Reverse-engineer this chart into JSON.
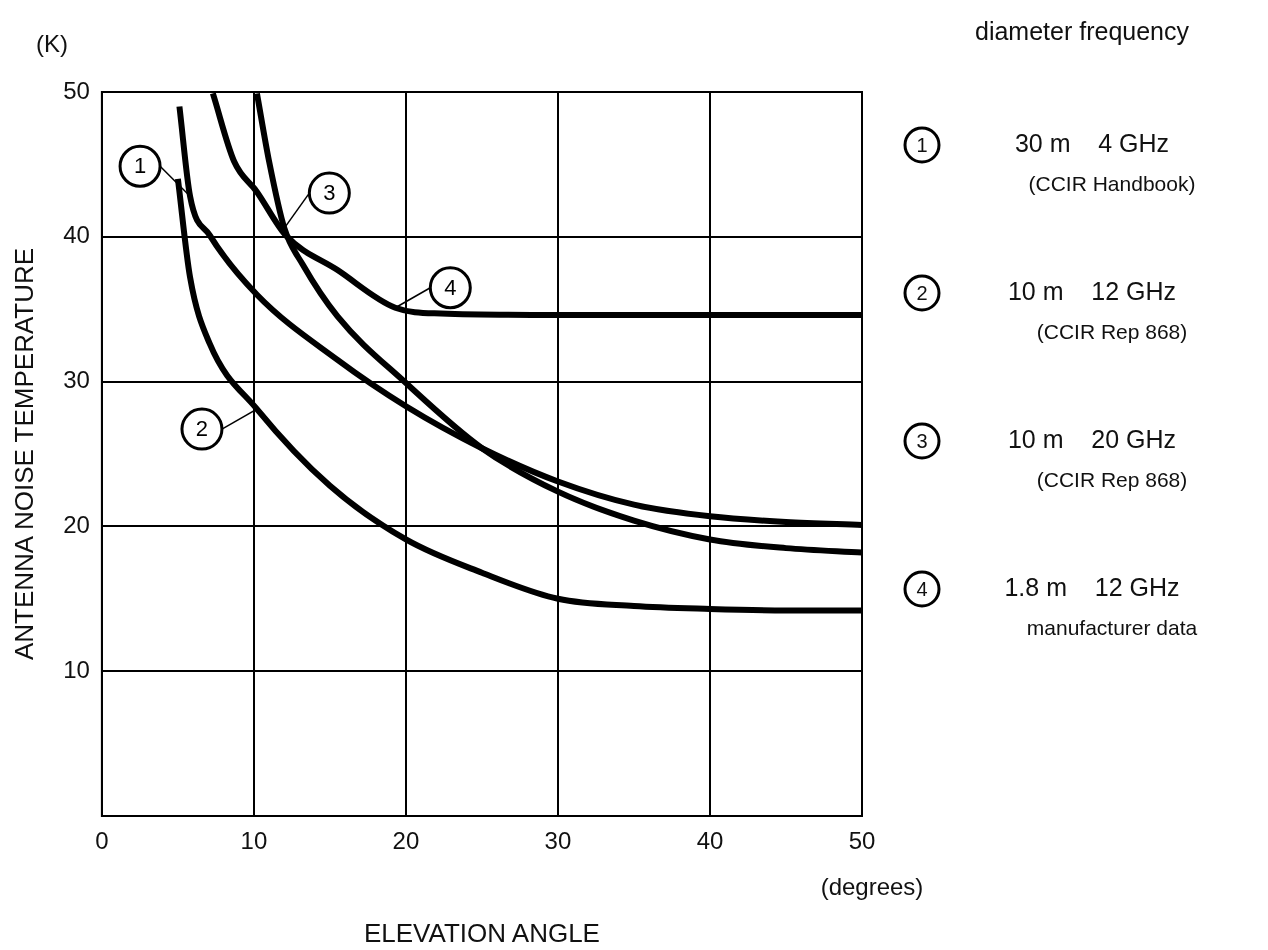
{
  "chart_data": {
    "type": "line",
    "xlabel": "ELEVATION ANGLE",
    "ylabel": "ANTENNA NOISE TEMPERATURE",
    "annotations": [
      "(K)",
      "(degrees)",
      "diameter frequency",
      "30 m    4 GHz\n(CCIR Handbook)",
      "10 m    12 GHz\n(CCIR Rep 868)",
      "10 m    20 GHz\n(CCIR Rep 868)",
      "1.8 m    12 GHz\nmanufacturer data"
    ],
    "xlim": [
      0,
      50
    ],
    "xticks": [
      0,
      10,
      20,
      30,
      40,
      50
    ],
    "ylim": [
      0,
      50
    ],
    "yticks": [
      10,
      20,
      30,
      40,
      50
    ],
    "grid": true,
    "marker": "none",
    "line_style": "solid",
    "series": [
      {
        "name": "1",
        "color": "#000000",
        "x": [
          5.1,
          5.8,
          7.1,
          10.2,
          15.5,
          20,
          25,
          30,
          35,
          40,
          45,
          50
        ],
        "values": [
          49,
          42.8,
          40.1,
          36,
          31.5,
          28.3,
          25.4,
          23.1,
          21.5,
          20.7,
          20.3,
          20.1
        ]
      },
      {
        "name": "2",
        "color": "#000000",
        "x": [
          5,
          5.8,
          7.1,
          10.2,
          15,
          20,
          25,
          30,
          35,
          40,
          45,
          50
        ],
        "values": [
          44,
          37.2,
          32.6,
          28.1,
          22.8,
          19.1,
          16.8,
          15,
          14.5,
          14.3,
          14.2,
          14.2
        ]
      },
      {
        "name": "3",
        "color": "#000000",
        "x": [
          10.2,
          11,
          12,
          13.2,
          15.5,
          20,
          25,
          30,
          35,
          40,
          45,
          50
        ],
        "values": [
          49.9,
          45.2,
          40.6,
          38.1,
          34.5,
          29.9,
          25.4,
          22.4,
          20.4,
          19.1,
          18.5,
          18.2
        ]
      },
      {
        "name": "4",
        "color": "#000000",
        "x": [
          7.3,
          8.7,
          10.2,
          12.1,
          15.5,
          19.3,
          22.3,
          30,
          40,
          50
        ],
        "values": [
          49.9,
          45.2,
          43.1,
          40.1,
          37.7,
          35.1,
          34.7,
          34.6,
          34.6,
          34.6
        ]
      }
    ]
  }
}
